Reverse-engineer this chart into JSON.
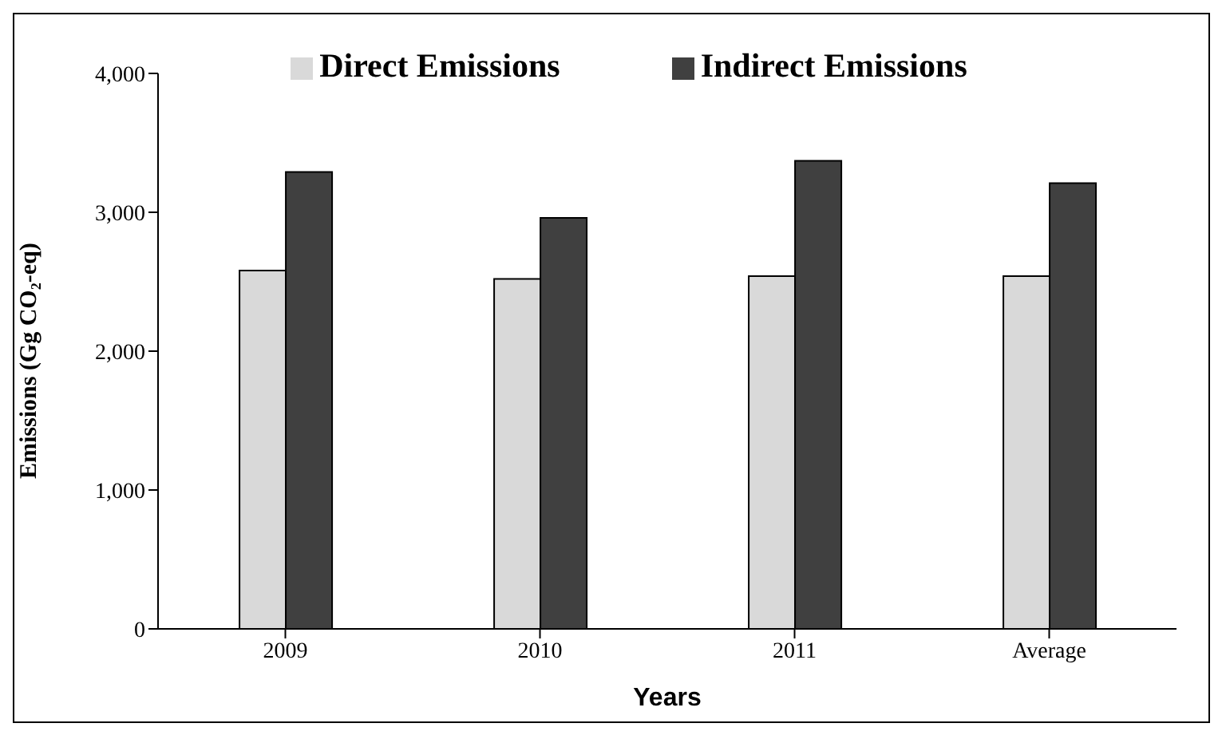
{
  "chart_data": {
    "type": "bar",
    "xlabel": "Years",
    "ylabel": "Emissions (Gg CO₂-eq)",
    "categories": [
      "2009",
      "2010",
      "2011",
      "Average"
    ],
    "series": [
      {
        "name": "Direct Emissions",
        "color": "#d9d9d9",
        "values": [
          2580,
          2520,
          2540,
          2540
        ]
      },
      {
        "name": "Indirect Emissions",
        "color": "#404040",
        "values": [
          3290,
          2960,
          3370,
          3210
        ]
      }
    ],
    "ylim": [
      0,
      4000
    ],
    "yticks": [
      {
        "value": 0,
        "label": "0"
      },
      {
        "value": 1000,
        "label": "1,000"
      },
      {
        "value": 2000,
        "label": "2,000"
      },
      {
        "value": 3000,
        "label": "3,000"
      },
      {
        "value": 4000,
        "label": "4,000"
      }
    ],
    "grid": false,
    "legend": "top"
  }
}
